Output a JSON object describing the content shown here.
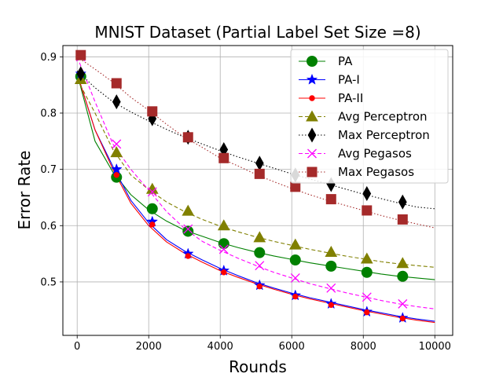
{
  "chart_data": {
    "type": "line",
    "title": "MNIST Dataset (Partial Label Set Size =8)",
    "xlabel": "Rounds",
    "ylabel": "Error Rate",
    "xlim": [
      -400,
      10500
    ],
    "ylim": [
      0.405,
      0.92
    ],
    "xticks": [
      0,
      2000,
      4000,
      6000,
      8000,
      10000
    ],
    "yticks": [
      0.5,
      0.6,
      0.7,
      0.8,
      0.9
    ],
    "grid": true,
    "legend_position": "top-right",
    "x": [
      0,
      500,
      1000,
      1500,
      2000,
      2500,
      3000,
      3500,
      4000,
      4500,
      5000,
      5500,
      6000,
      6500,
      7000,
      7500,
      8000,
      8500,
      9000,
      9500,
      10000
    ],
    "marker_x": [
      100,
      1100,
      2100,
      3100,
      4100,
      5100,
      6100,
      7100,
      8100,
      9100
    ],
    "series": [
      {
        "name": "PA",
        "color": "#008000",
        "dash": "solid",
        "marker": "circle",
        "y": [
          0.87,
          0.75,
          0.695,
          0.655,
          0.628,
          0.608,
          0.592,
          0.581,
          0.57,
          0.561,
          0.553,
          0.546,
          0.54,
          0.534,
          0.529,
          0.524,
          0.519,
          0.514,
          0.51,
          0.507,
          0.504
        ],
        "marker_y": [
          0.865,
          0.686,
          0.63,
          0.59,
          0.568,
          0.552,
          0.539,
          0.528,
          0.517,
          0.51
        ]
      },
      {
        "name": "PA-I",
        "color": "#0000ff",
        "dash": "solid",
        "marker": "star",
        "y": [
          0.87,
          0.77,
          0.705,
          0.645,
          0.605,
          0.575,
          0.555,
          0.539,
          0.524,
          0.511,
          0.499,
          0.489,
          0.48,
          0.472,
          0.465,
          0.458,
          0.451,
          0.445,
          0.439,
          0.434,
          0.43
        ],
        "marker_y": [
          0.87,
          0.7,
          0.607,
          0.55,
          0.52,
          0.494,
          0.476,
          0.461,
          0.447,
          0.436
        ]
      },
      {
        "name": "PA-II",
        "color": "#ff0000",
        "dash": "solid",
        "marker": "dot",
        "y": [
          0.87,
          0.77,
          0.7,
          0.64,
          0.6,
          0.571,
          0.551,
          0.535,
          0.52,
          0.508,
          0.497,
          0.487,
          0.478,
          0.47,
          0.463,
          0.456,
          0.449,
          0.443,
          0.437,
          0.432,
          0.428
        ],
        "marker_y": [
          0.87,
          0.69,
          0.602,
          0.546,
          0.517,
          0.492,
          0.474,
          0.459,
          0.446,
          0.435
        ]
      },
      {
        "name": "Avg Perceptron",
        "color": "#808000",
        "dash": "dashed",
        "marker": "triangle",
        "y": [
          0.86,
          0.8,
          0.735,
          0.69,
          0.664,
          0.642,
          0.625,
          0.611,
          0.599,
          0.589,
          0.58,
          0.572,
          0.565,
          0.558,
          0.552,
          0.546,
          0.541,
          0.536,
          0.532,
          0.529,
          0.526
        ],
        "marker_y": [
          0.86,
          0.73,
          0.665,
          0.626,
          0.6,
          0.579,
          0.566,
          0.553,
          0.541,
          0.533
        ]
      },
      {
        "name": "Max Perceptron",
        "color": "#000000",
        "dash": "dotted",
        "marker": "diamond",
        "y": [
          0.875,
          0.845,
          0.82,
          0.802,
          0.786,
          0.771,
          0.757,
          0.745,
          0.733,
          0.722,
          0.712,
          0.702,
          0.692,
          0.683,
          0.674,
          0.665,
          0.656,
          0.648,
          0.64,
          0.633,
          0.63
        ],
        "marker_y": [
          0.87,
          0.82,
          0.79,
          0.757,
          0.735,
          0.711,
          0.69,
          0.673,
          0.657,
          0.642
        ]
      },
      {
        "name": "Avg Pegasos",
        "color": "#ff00ff",
        "dash": "dashed",
        "marker": "x",
        "y": [
          0.9,
          0.82,
          0.745,
          0.7,
          0.663,
          0.625,
          0.595,
          0.572,
          0.556,
          0.542,
          0.529,
          0.517,
          0.507,
          0.497,
          0.489,
          0.481,
          0.474,
          0.467,
          0.461,
          0.456,
          0.452
        ],
        "marker_y": [
          0.9,
          0.745,
          0.66,
          0.594,
          0.558,
          0.529,
          0.507,
          0.489,
          0.473,
          0.461
        ]
      },
      {
        "name": "Max Pegasos",
        "color": "#a52a2a",
        "dash": "dotted",
        "marker": "square",
        "y": [
          0.9,
          0.878,
          0.855,
          0.828,
          0.805,
          0.78,
          0.757,
          0.739,
          0.72,
          0.706,
          0.691,
          0.678,
          0.666,
          0.655,
          0.645,
          0.636,
          0.627,
          0.618,
          0.61,
          0.603,
          0.596
        ],
        "marker_y": [
          0.903,
          0.853,
          0.803,
          0.757,
          0.72,
          0.692,
          0.669,
          0.647,
          0.627,
          0.611
        ]
      }
    ]
  }
}
